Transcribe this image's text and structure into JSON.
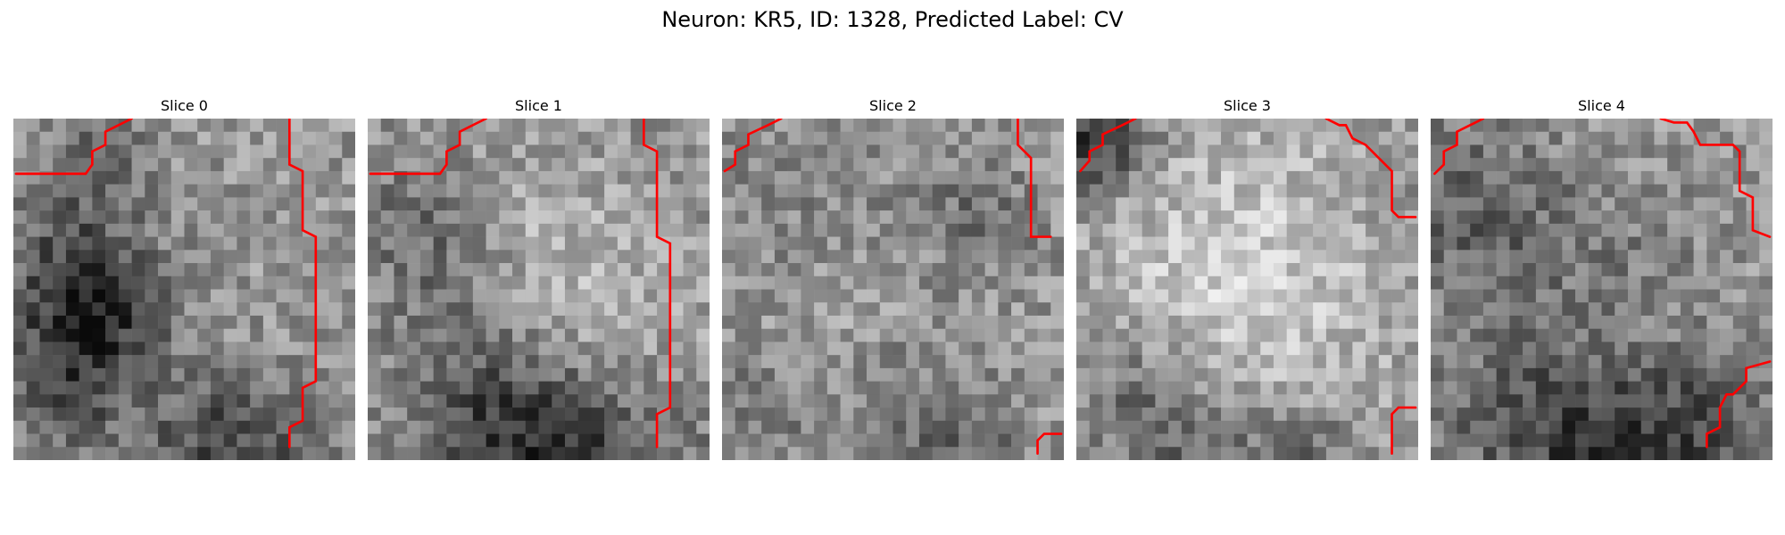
{
  "figure": {
    "title": "Neuron: KR5, ID: 1328, Predicted Label: CV"
  },
  "palette": {
    "contour": "#ff0000",
    "background": "#ffffff"
  },
  "grid_size": 26,
  "panels": [
    {
      "title": "Slice 0"
    },
    {
      "title": "Slice 1"
    },
    {
      "title": "Slice 2"
    },
    {
      "title": "Slice 3"
    },
    {
      "title": "Slice 4"
    }
  ]
}
